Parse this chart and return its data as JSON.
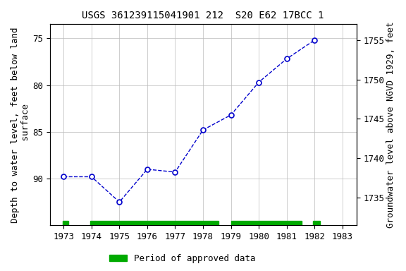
{
  "title": "USGS 361239115041901 212  S20 E62 17BCC 1",
  "ylabel_left": "Depth to water level, feet below land\n surface",
  "ylabel_right": "Groundwater level above NGVD 1929, feet",
  "years": [
    1973,
    1974,
    1975,
    1976,
    1977,
    1978,
    1979,
    1980,
    1981,
    1982
  ],
  "depth_values": [
    89.8,
    89.8,
    92.5,
    89.0,
    89.3,
    84.8,
    83.2,
    79.7,
    77.2,
    75.2
  ],
  "xlim": [
    1972.5,
    1983.5
  ],
  "ylim_left": [
    95.0,
    73.5
  ],
  "ylim_right": [
    1731.5,
    1757.0
  ],
  "yticks_left": [
    75,
    80,
    85,
    90
  ],
  "yticks_right": [
    1735,
    1740,
    1745,
    1750,
    1755
  ],
  "xticks": [
    1973,
    1974,
    1975,
    1976,
    1977,
    1978,
    1979,
    1980,
    1981,
    1982,
    1983
  ],
  "line_color": "#0000CC",
  "marker_facecolor": "#ffffff",
  "marker_edgecolor": "#0000CC",
  "bg_color": "#ffffff",
  "grid_color": "#bbbbbb",
  "approved_color": "#00aa00",
  "legend_label": "Period of approved data",
  "approved_segments": [
    {
      "x_start": 1972.98,
      "x_end": 1973.18
    },
    {
      "x_start": 1973.95,
      "x_end": 1978.55
    },
    {
      "x_start": 1979.0,
      "x_end": 1981.55
    },
    {
      "x_start": 1981.95,
      "x_end": 1982.2
    }
  ],
  "title_fontsize": 10,
  "label_fontsize": 9,
  "tick_fontsize": 9
}
